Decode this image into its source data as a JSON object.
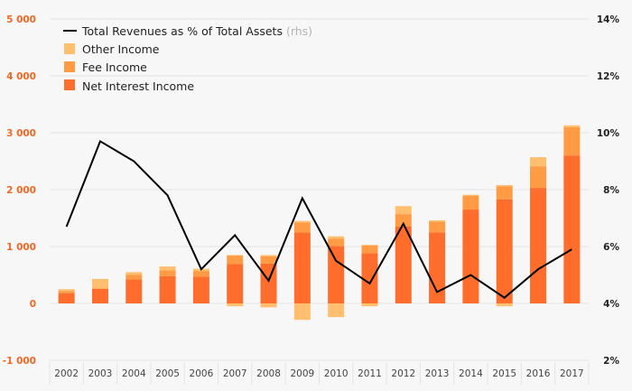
{
  "colors": {
    "net_interest": "#ff6d2d",
    "fee": "#ff9b45",
    "other": "#ffbf6e",
    "line": "#000000",
    "grid": "#e3e3e3",
    "background": "#f7f7f7",
    "left_axis_text": "#f26722"
  },
  "legend": {
    "line_label": "Total Revenues as % of Total Assets",
    "line_suffix": "(rhs)",
    "other_label": "Other Income",
    "fee_label": "Fee Income",
    "nii_label": "Net Interest Income"
  },
  "chart_data": {
    "type": "bar",
    "stacked": true,
    "categories": [
      "2002",
      "2003",
      "2004",
      "2005",
      "2006",
      "2007",
      "2008",
      "2009",
      "2010",
      "2011",
      "2012",
      "2013",
      "2014",
      "2015",
      "2016",
      "2017"
    ],
    "series": [
      {
        "name": "Net Interest Income",
        "values": [
          180,
          260,
          420,
          480,
          470,
          690,
          700,
          1250,
          1010,
          880,
          1350,
          1250,
          1650,
          1830,
          2030,
          2600
        ]
      },
      {
        "name": "Fee Income",
        "values": [
          40,
          0,
          80,
          100,
          100,
          150,
          130,
          170,
          130,
          140,
          220,
          190,
          240,
          230,
          380,
          500
        ]
      },
      {
        "name": "Other Income",
        "values": [
          30,
          170,
          50,
          70,
          40,
          10,
          20,
          30,
          40,
          10,
          140,
          20,
          20,
          20,
          160,
          30
        ]
      }
    ],
    "negative_other": [
      0,
      0,
      0,
      0,
      0,
      -50,
      -70,
      -290,
      -240,
      -50,
      0,
      0,
      0,
      -50,
      0,
      0
    ],
    "line_series": {
      "name": "Total Revenues as % of Total Assets",
      "axis": "right",
      "values": [
        6.7,
        9.7,
        9.0,
        7.8,
        5.2,
        6.4,
        4.8,
        7.7,
        5.5,
        4.7,
        6.8,
        4.4,
        5.0,
        4.2,
        5.2,
        5.9
      ]
    },
    "left_axis": {
      "range": [
        -1000,
        5000
      ],
      "ticks": [
        -1000,
        0,
        1000,
        2000,
        3000,
        4000,
        5000
      ],
      "tick_labels": [
        "-1 000",
        "0",
        "1 000",
        "2 000",
        "3 000",
        "4 000",
        "5 000"
      ]
    },
    "right_axis": {
      "range": [
        2,
        14
      ],
      "ticks": [
        2,
        4,
        6,
        8,
        10,
        12,
        14
      ],
      "tick_labels": [
        "2%",
        "4%",
        "6%",
        "8%",
        "10%",
        "12%",
        "14%"
      ]
    },
    "grid": true,
    "legend_position": "top-left"
  }
}
